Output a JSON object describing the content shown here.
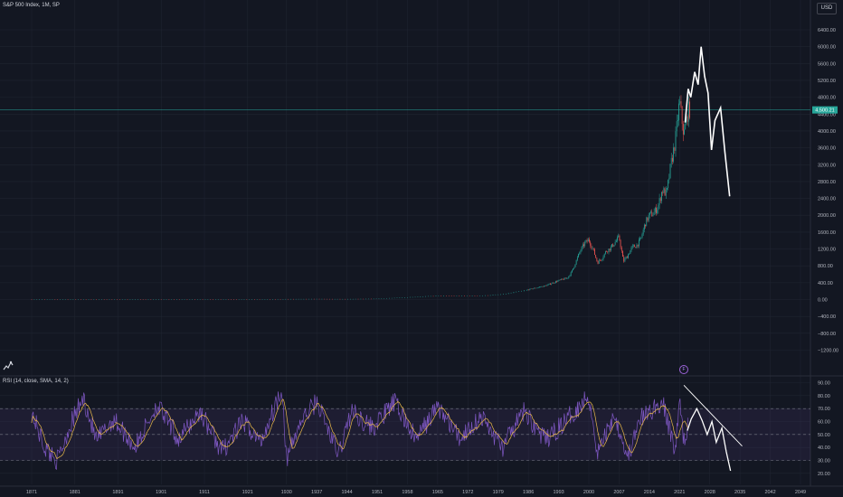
{
  "header": {
    "symbol": "S&P 500 Index, 1M, SP",
    "currency": "USD",
    "indicator": "RSI (14, close, SMA, 14, 2)",
    "event_badge": "F",
    "price_tag": "4,500.21"
  },
  "colors": {
    "background": "#131722",
    "grid": "#1f2430",
    "axis_text": "#b2b5be",
    "up": "#26a69a",
    "down": "#ef5350",
    "rsi": "#7e57c2",
    "rsi_ma": "#e8b84a",
    "projection": "#ffffff"
  },
  "chart_data": [
    {
      "type": "line",
      "panel": "price",
      "xlim": [
        1871,
        2049
      ],
      "ylim": [
        -1300,
        6900
      ],
      "x_ticks": [
        "1871",
        "1881",
        "1891",
        "1901",
        "1911",
        "1921",
        "1930",
        "1937",
        "1944",
        "1951",
        "1958",
        "1965",
        "1972",
        "1979",
        "1986",
        "1993",
        "2000",
        "2007",
        "2014",
        "2021",
        "2028",
        "2035",
        "2042",
        "2049"
      ],
      "y_ticks": [
        6400,
        6000,
        5600,
        5200,
        4800,
        4400,
        4000,
        3600,
        3200,
        2800,
        2400,
        2000,
        1600,
        1200,
        800,
        400,
        0,
        -400,
        -800,
        -1200
      ],
      "y_tick_labels": [
        "6400.00",
        "6000.00",
        "5600.00",
        "5200.00",
        "4800.00",
        "4400.00",
        "4000.00",
        "3600.00",
        "3200.00",
        "2800.00",
        "2400.00",
        "2000.00",
        "1600.00",
        "1200.00",
        "800.00",
        "400.00",
        "0.00",
        "−400.00",
        "−800.00",
        "−1200.00"
      ],
      "current_price_line": 4500,
      "series": [
        {
          "kind": "candles",
          "x": [
            1871,
            1881,
            1891,
            1901,
            1911,
            1921,
            1930,
            1937,
            1944,
            1951,
            1958,
            1965,
            1970,
            1975,
            1980,
            1985,
            1990,
            1993,
            1995,
            1996,
            1997,
            1998,
            1999,
            2000,
            2001,
            2002,
            2003,
            2004,
            2005,
            2006,
            2007,
            2008,
            2009,
            2010,
            2011,
            2012,
            2013,
            2014,
            2015,
            2016,
            2017,
            2018,
            2019,
            2020,
            2021,
            2022,
            2023
          ],
          "y": [
            4,
            6,
            5,
            7,
            8,
            7,
            12,
            15,
            12,
            22,
            55,
            90,
            85,
            90,
            125,
            210,
            330,
            450,
            510,
            650,
            900,
            1150,
            1330,
            1420,
            1180,
            880,
            980,
            1150,
            1220,
            1350,
            1480,
            900,
            1050,
            1240,
            1280,
            1420,
            1800,
            2000,
            2050,
            2200,
            2600,
            2500,
            3200,
            3750,
            4700,
            3900,
            4500
          ]
        },
        {
          "kind": "projection",
          "x": [
            2022.3,
            2023.0,
            2023.6,
            2024.5,
            2025.3,
            2026.0,
            2026.8,
            2027.6,
            2028.4,
            2029.2,
            2030.5,
            2031.5,
            2032.6
          ],
          "y": [
            4200,
            5000,
            4800,
            5400,
            5100,
            6000,
            5300,
            4900,
            3550,
            4250,
            4550,
            3500,
            2450
          ]
        }
      ]
    },
    {
      "type": "line",
      "panel": "rsi",
      "xlim": [
        1871,
        2049
      ],
      "ylim": [
        17,
        96
      ],
      "y_ticks": [
        90,
        80,
        70,
        60,
        50,
        40,
        30,
        20
      ],
      "y_tick_labels": [
        "90.00",
        "80.00",
        "70.00",
        "60.00",
        "50.00",
        "40.00",
        "30.00",
        "20.00"
      ],
      "band": [
        30,
        70
      ],
      "midline": 50,
      "rsi_key_points": {
        "x": [
          1871,
          1874,
          1877,
          1880,
          1883,
          1886,
          1890,
          1895,
          1900,
          1905,
          1910,
          1915,
          1920,
          1924,
          1928,
          1929,
          1930,
          1933,
          1937,
          1942,
          1945,
          1950,
          1955,
          1960,
          1965,
          1970,
          1975,
          1980,
          1985,
          1990,
          1995,
          2000,
          2002,
          2006,
          2009,
          2012,
          2017,
          2020,
          2021,
          2022,
          2023
        ],
        "y": [
          67,
          40,
          30,
          58,
          78,
          45,
          62,
          40,
          73,
          46,
          68,
          37,
          60,
          44,
          78,
          86,
          30,
          58,
          76,
          34,
          68,
          55,
          75,
          46,
          72,
          47,
          64,
          40,
          68,
          45,
          62,
          80,
          36,
          66,
          32,
          62,
          75,
          38,
          75,
          45,
          60
        ]
      },
      "trendline": {
        "x": [
          2022.0,
          2035.5
        ],
        "y": [
          88,
          41
        ]
      },
      "projection": {
        "x": [
          2022.8,
          2023.7,
          2025.0,
          2026.2,
          2027.4,
          2028.5,
          2029.5,
          2030.8,
          2031.8,
          2032.8
        ],
        "y": [
          53,
          62,
          70,
          61,
          50,
          60,
          44,
          55,
          37,
          22
        ]
      }
    }
  ]
}
